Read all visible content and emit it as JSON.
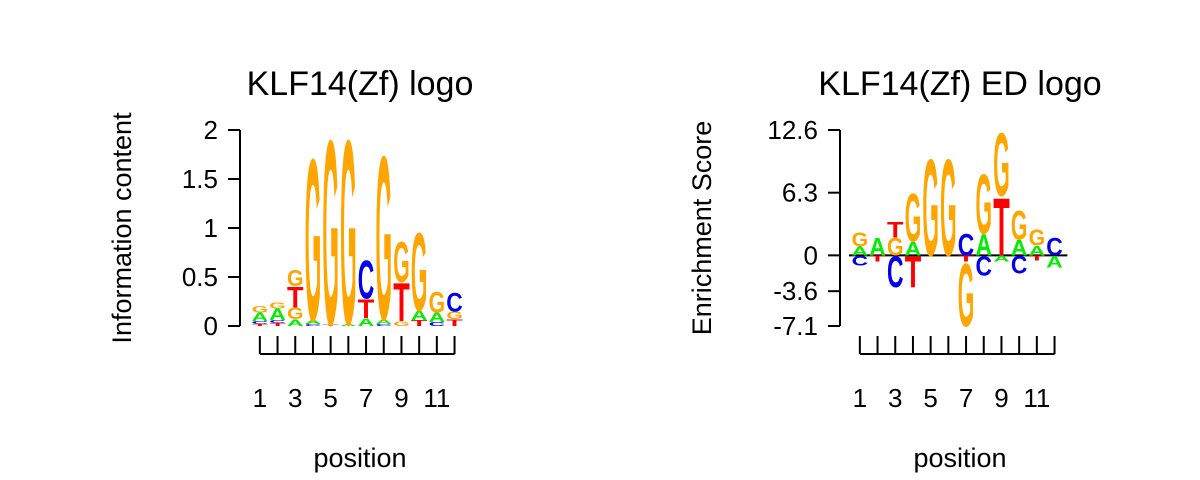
{
  "chart_data": [
    {
      "type": "sequence-logo",
      "title": "KLF14(Zf) logo",
      "xlabel": "position",
      "ylabel": "Information content",
      "ylim": [
        0,
        2
      ],
      "yticks": [
        {
          "value": 0,
          "label": "0"
        },
        {
          "value": 0.5,
          "label": "0.5"
        },
        {
          "value": 1,
          "label": "1"
        },
        {
          "value": 1.5,
          "label": "1.5"
        },
        {
          "value": 2,
          "label": "2"
        }
      ],
      "positions": [
        1,
        2,
        3,
        4,
        5,
        6,
        7,
        8,
        9,
        10,
        11,
        12
      ],
      "xtick_labels": [
        {
          "position": 1,
          "label": "1"
        },
        {
          "position": 3,
          "label": "3"
        },
        {
          "position": 5,
          "label": "5"
        },
        {
          "position": 7,
          "label": "7"
        },
        {
          "position": 9,
          "label": "9"
        },
        {
          "position": 11,
          "label": "11"
        }
      ],
      "columns": [
        [
          {
            "base": "T",
            "value": 0.02
          },
          {
            "base": "C",
            "value": 0.03
          },
          {
            "base": "A",
            "value": 0.09
          },
          {
            "base": "G",
            "value": 0.07
          }
        ],
        [
          {
            "base": "T",
            "value": 0.03
          },
          {
            "base": "C",
            "value": 0.03
          },
          {
            "base": "A",
            "value": 0.12
          },
          {
            "base": "G",
            "value": 0.06
          }
        ],
        [
          {
            "base": "A",
            "value": 0.07
          },
          {
            "base": "G",
            "value": 0.12
          },
          {
            "base": "T",
            "value": 0.22
          },
          {
            "base": "G",
            "value": 0.17
          }
        ],
        [
          {
            "base": "C",
            "value": 0.02
          },
          {
            "base": "A",
            "value": 0.04
          },
          {
            "base": "G",
            "value": 1.7
          }
        ],
        [
          {
            "base": "T",
            "value": 0.02
          },
          {
            "base": "G",
            "value": 1.94
          }
        ],
        [
          {
            "base": "A",
            "value": 0.02
          },
          {
            "base": "G",
            "value": 1.94
          }
        ],
        [
          {
            "base": "A",
            "value": 0.08
          },
          {
            "base": "T",
            "value": 0.2
          },
          {
            "base": "C",
            "value": 0.4
          }
        ],
        [
          {
            "base": "C",
            "value": 0.02
          },
          {
            "base": "A",
            "value": 0.05
          },
          {
            "base": "G",
            "value": 1.72
          }
        ],
        [
          {
            "base": "G",
            "value": 0.05
          },
          {
            "base": "T",
            "value": 0.4
          },
          {
            "base": "G",
            "value": 0.42
          }
        ],
        [
          {
            "base": "T",
            "value": 0.06
          },
          {
            "base": "A",
            "value": 0.1
          },
          {
            "base": "G",
            "value": 0.82
          }
        ],
        [
          {
            "base": "C",
            "value": 0.04
          },
          {
            "base": "A",
            "value": 0.1
          },
          {
            "base": "G",
            "value": 0.22
          }
        ],
        [
          {
            "base": "T",
            "value": 0.07
          },
          {
            "base": "G",
            "value": 0.08
          },
          {
            "base": "C",
            "value": 0.2
          }
        ]
      ]
    },
    {
      "type": "sequence-logo",
      "title": "KLF14(Zf) ED logo",
      "xlabel": "position",
      "ylabel": "Enrichment Score",
      "ylim": [
        -7.1,
        12.6
      ],
      "baseline": 0,
      "yticks": [
        {
          "value": 12.6,
          "label": "12.6"
        },
        {
          "value": 6.3,
          "label": "6.3"
        },
        {
          "value": 0,
          "label": "0"
        },
        {
          "value": -3.6,
          "label": "-3.6"
        },
        {
          "value": -7.1,
          "label": "-7.1"
        }
      ],
      "positions": [
        1,
        2,
        3,
        4,
        5,
        6,
        7,
        8,
        9,
        10,
        11,
        12
      ],
      "xtick_labels": [
        {
          "position": 1,
          "label": "1"
        },
        {
          "position": 3,
          "label": "3"
        },
        {
          "position": 5,
          "label": "5"
        },
        {
          "position": 7,
          "label": "7"
        },
        {
          "position": 9,
          "label": "9"
        },
        {
          "position": 11,
          "label": "11"
        }
      ],
      "columns": [
        {
          "up": [
            {
              "base": "A",
              "value": 0.9
            },
            {
              "base": "G",
              "value": 1.5
            }
          ],
          "down": [
            {
              "base": "C",
              "value": 1.0
            }
          ]
        },
        {
          "up": [
            {
              "base": "A",
              "value": 1.8
            }
          ],
          "down": [
            {
              "base": "T",
              "value": 0.6
            }
          ]
        },
        {
          "up": [
            {
              "base": "G",
              "value": 1.8
            },
            {
              "base": "T",
              "value": 1.6
            }
          ],
          "down": [
            {
              "base": "C",
              "value": 3.2
            }
          ]
        },
        {
          "up": [
            {
              "base": "A",
              "value": 1.4
            },
            {
              "base": "G",
              "value": 5.0
            }
          ],
          "down": [
            {
              "base": "T",
              "value": 3.2
            }
          ]
        },
        {
          "up": [
            {
              "base": "G",
              "value": 10.0
            }
          ],
          "down": []
        },
        {
          "up": [
            {
              "base": "G",
              "value": 10.0
            }
          ],
          "down": []
        },
        {
          "up": [
            {
              "base": "C",
              "value": 2.3
            }
          ],
          "down": [
            {
              "base": "T",
              "value": 0.6
            },
            {
              "base": "G",
              "value": 6.5
            }
          ]
        },
        {
          "up": [
            {
              "base": "A",
              "value": 2.2
            },
            {
              "base": "G",
              "value": 6.2
            }
          ],
          "down": [
            {
              "base": "C",
              "value": 2.0
            }
          ]
        },
        {
          "up": [
            {
              "base": "T",
              "value": 6.0
            },
            {
              "base": "G",
              "value": 6.5
            }
          ],
          "down": [
            {
              "base": "A",
              "value": 0.6
            }
          ]
        },
        {
          "up": [
            {
              "base": "A",
              "value": 1.6
            },
            {
              "base": "G",
              "value": 3.0
            }
          ],
          "down": [
            {
              "base": "C",
              "value": 1.8
            }
          ]
        },
        {
          "up": [
            {
              "base": "A",
              "value": 1.0
            },
            {
              "base": "G",
              "value": 1.7
            }
          ],
          "down": [
            {
              "base": "T",
              "value": 0.5
            }
          ]
        },
        {
          "up": [
            {
              "base": "C",
              "value": 1.8
            }
          ],
          "down": [
            {
              "base": "A",
              "value": 1.2
            }
          ]
        }
      ]
    }
  ],
  "colors": {
    "A": "#00ee00",
    "C": "#0000ee",
    "G": "#ffa500",
    "T": "#ff0000",
    "axis": "#000000",
    "background": "#ffffff"
  }
}
